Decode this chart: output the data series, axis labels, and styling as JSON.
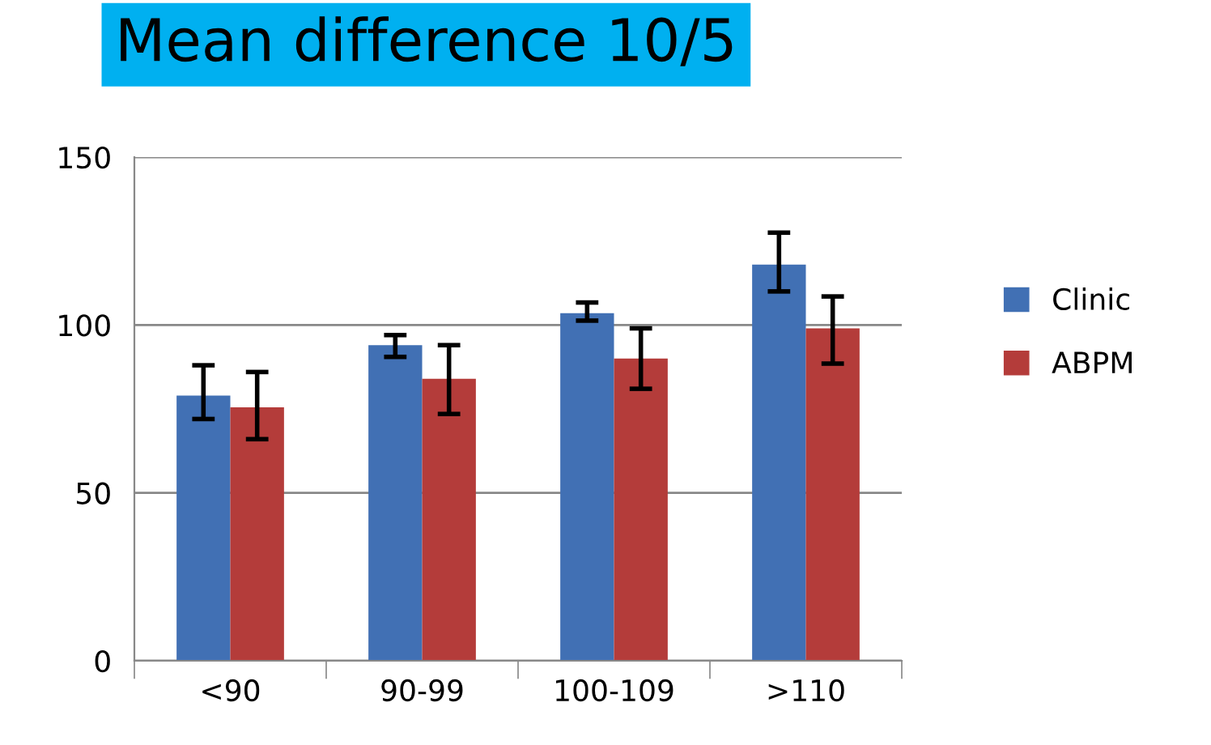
{
  "chart_data": {
    "type": "bar",
    "title": "Mean difference 10/5",
    "categories": [
      "<90",
      "90-99",
      "100-109",
      ">110"
    ],
    "series": [
      {
        "name": "Clinic",
        "color": "#4170b4",
        "values": [
          79,
          94,
          103.5,
          118
        ],
        "errors": [
          [
            72,
            88
          ],
          [
            90.5,
            97
          ],
          [
            101.3,
            106.7
          ],
          [
            110,
            127.5
          ]
        ]
      },
      {
        "name": "ABPM",
        "color": "#b43c3a",
        "values": [
          75.5,
          84,
          90,
          99
        ],
        "errors": [
          [
            66,
            86
          ],
          [
            73.5,
            94
          ],
          [
            81,
            99
          ],
          [
            88.5,
            108.5
          ]
        ]
      }
    ],
    "ylim": [
      0,
      150
    ],
    "yticks": [
      0,
      50,
      100,
      150
    ],
    "grid": "y",
    "legend": "right"
  }
}
